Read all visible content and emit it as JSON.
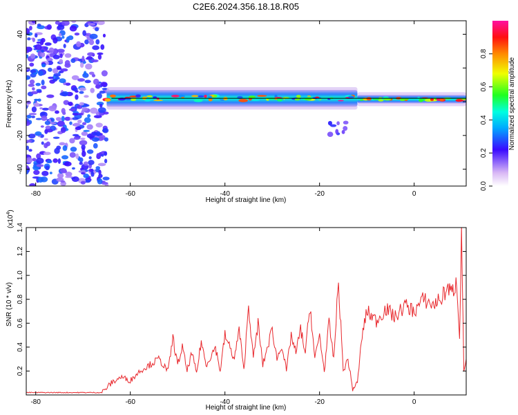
{
  "title": "C2E6.2024.356.18.18.R05",
  "chart_data": [
    {
      "type": "heatmap",
      "xlabel": "Height of straight line (km)",
      "ylabel": "Frequency (Hz)",
      "xlim": [
        -82,
        11
      ],
      "ylim": [
        -50,
        48
      ],
      "x_ticks": [
        -80,
        -60,
        -40,
        -20,
        0
      ],
      "y_ticks": [
        -40,
        -20,
        0,
        20,
        40
      ],
      "colorbar": {
        "label": "Normalized spectral amplitude",
        "range": [
          0,
          1
        ],
        "ticks": [
          0.0,
          0.2,
          0.4,
          0.6,
          0.8
        ]
      },
      "line": {
        "name": "",
        "points": [
          [
            -64,
            2
          ],
          [
            11,
            2
          ]
        ]
      },
      "regions": [
        {
          "x": [
            -82,
            -65
          ],
          "y": [
            -50,
            48
          ],
          "amplitude": [
            0.1,
            0.3
          ]
        },
        {
          "x": [
            -65,
            -12
          ],
          "y": [
            -3,
            7
          ],
          "amplitude": [
            0.2,
            1.0
          ]
        },
        {
          "x": [
            -12,
            11
          ],
          "y": [
            -1,
            4
          ],
          "amplitude": [
            0.4,
            1.0
          ]
        },
        {
          "x": [
            -18,
            -14
          ],
          "y": [
            -20,
            -12
          ],
          "amplitude": [
            0.15,
            0.3
          ]
        }
      ]
    },
    {
      "type": "line",
      "xlabel": "Height of straight line (km)",
      "ylabel": "SNR (10 * v/v)",
      "y_multiplier": "(x10",
      "y_multiplier_exp": "4",
      "y_multiplier_close": ")",
      "xlim": [
        -82,
        11
      ],
      "ylim": [
        0,
        1.4
      ],
      "x_ticks": [
        -80,
        -60,
        -40,
        -20,
        0
      ],
      "y_ticks": [
        0.2,
        0.4,
        0.6,
        0.8,
        1.0,
        1.2,
        1.4
      ],
      "series": [
        {
          "name": "",
          "color": "#e8262b",
          "x": [
            -82,
            -66,
            -64,
            -62,
            -60,
            -58,
            -56,
            -54,
            -52,
            -51,
            -50,
            -49,
            -48,
            -47,
            -46,
            -45,
            -44,
            -42,
            -41,
            -40,
            -38,
            -37,
            -36,
            -35,
            -34,
            -33,
            -32,
            -30,
            -29,
            -28,
            -27,
            -26,
            -25,
            -24,
            -23,
            -22,
            -21,
            -20,
            -19,
            -18,
            -17,
            -16,
            -15,
            -14,
            -13,
            -12,
            -11,
            -10,
            -8,
            -6,
            -4,
            -2,
            0,
            2,
            4,
            6,
            7,
            8,
            9,
            9.6,
            10,
            10.5,
            11
          ],
          "y": [
            0.02,
            0.02,
            0.1,
            0.15,
            0.12,
            0.2,
            0.25,
            0.3,
            0.2,
            0.48,
            0.25,
            0.4,
            0.2,
            0.35,
            0.18,
            0.45,
            0.25,
            0.4,
            0.2,
            0.5,
            0.3,
            0.55,
            0.2,
            0.76,
            0.3,
            0.6,
            0.25,
            0.55,
            0.3,
            0.42,
            0.2,
            0.5,
            0.35,
            0.55,
            0.35,
            0.75,
            0.3,
            0.5,
            0.2,
            0.6,
            0.3,
            0.95,
            0.2,
            0.3,
            0.05,
            0.1,
            0.5,
            0.7,
            0.62,
            0.72,
            0.65,
            0.75,
            0.7,
            0.8,
            0.75,
            0.82,
            0.9,
            0.85,
            0.95,
            0.5,
            1.4,
            0.2,
            0.3
          ]
        }
      ]
    }
  ]
}
